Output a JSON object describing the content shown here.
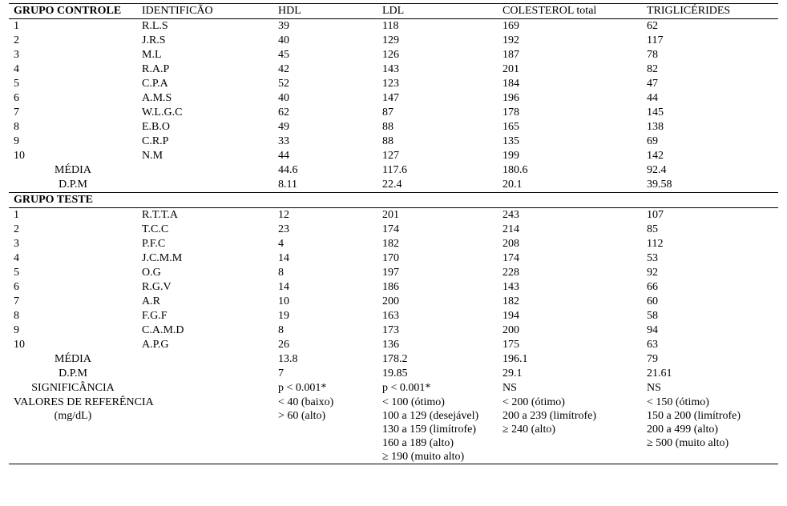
{
  "headers": {
    "grupo_controle": "GRUPO CONTROLE",
    "grupo_teste": "GRUPO TESTE",
    "identificacao": "IDENTIFICÃO",
    "hdl": "HDL",
    "ldl": "LDL",
    "colesterol_total": "COLESTEROL total",
    "triglicerides": "TRIGLICÉRIDES"
  },
  "labels": {
    "media": "MÉDIA",
    "dpm": "D.P.M",
    "significancia": "SIGNIFICÂNCIA",
    "valores_ref1": "VALORES DE REFERÊNCIA",
    "valores_ref2": "(mg/dL)"
  },
  "controle": {
    "rows": [
      {
        "n": "1",
        "id": "R.L.S",
        "hdl": "39",
        "ldl": "118",
        "col": "169",
        "trig": "62"
      },
      {
        "n": "2",
        "id": "J.R.S",
        "hdl": "40",
        "ldl": "129",
        "col": "192",
        "trig": "117"
      },
      {
        "n": "3",
        "id": "M.L",
        "hdl": "45",
        "ldl": "126",
        "col": "187",
        "trig": "78"
      },
      {
        "n": "4",
        "id": "R.A.P",
        "hdl": "42",
        "ldl": "143",
        "col": "201",
        "trig": "82"
      },
      {
        "n": "5",
        "id": "C.P.A",
        "hdl": "52",
        "ldl": "123",
        "col": "184",
        "trig": "47"
      },
      {
        "n": "6",
        "id": "A.M.S",
        "hdl": "40",
        "ldl": "147",
        "col": "196",
        "trig": "44"
      },
      {
        "n": "7",
        "id": "W.L.G.C",
        "hdl": "62",
        "ldl": "87",
        "col": "178",
        "trig": "145"
      },
      {
        "n": "8",
        "id": "E.B.O",
        "hdl": "49",
        "ldl": "88",
        "col": "165",
        "trig": "138"
      },
      {
        "n": "9",
        "id": "C.R.P",
        "hdl": "33",
        "ldl": "88",
        "col": "135",
        "trig": "69"
      },
      {
        "n": "10",
        "id": "N.M",
        "hdl": "44",
        "ldl": "127",
        "col": "199",
        "trig": "142"
      }
    ],
    "media": {
      "hdl": "44.6",
      "ldl": "117.6",
      "col": "180.6",
      "trig": "92.4"
    },
    "dpm": {
      "hdl": "8.11",
      "ldl": "22.4",
      "col": "20.1",
      "trig": "39.58"
    }
  },
  "teste": {
    "rows": [
      {
        "n": "1",
        "id": "R.T.T.A",
        "hdl": "12",
        "ldl": "201",
        "col": "243",
        "trig": "107"
      },
      {
        "n": "2",
        "id": "T.C.C",
        "hdl": "23",
        "ldl": "174",
        "col": "214",
        "trig": "85"
      },
      {
        "n": "3",
        "id": "P.F.C",
        "hdl": "4",
        "ldl": "182",
        "col": "208",
        "trig": "112"
      },
      {
        "n": "4",
        "id": "J.C.M.M",
        "hdl": "14",
        "ldl": "170",
        "col": "174",
        "trig": "53"
      },
      {
        "n": "5",
        "id": "O.G",
        "hdl": "8",
        "ldl": "197",
        "col": "228",
        "trig": "92"
      },
      {
        "n": "6",
        "id": "R.G.V",
        "hdl": "14",
        "ldl": "186",
        "col": "143",
        "trig": "66"
      },
      {
        "n": "7",
        "id": "A.R",
        "hdl": "10",
        "ldl": "200",
        "col": "182",
        "trig": "60"
      },
      {
        "n": "8",
        "id": "F.G.F",
        "hdl": "19",
        "ldl": "163",
        "col": "194",
        "trig": "58"
      },
      {
        "n": "9",
        "id": "C.A.M.D",
        "hdl": "8",
        "ldl": "173",
        "col": "200",
        "trig": "94"
      },
      {
        "n": "10",
        "id": "A.P.G",
        "hdl": "26",
        "ldl": "136",
        "col": "175",
        "trig": "63"
      }
    ],
    "media": {
      "hdl": "13.8",
      "ldl": "178.2",
      "col": "196.1",
      "trig": "79"
    },
    "dpm": {
      "hdl": "7",
      "ldl": "19.85",
      "col": "29.1",
      "trig": "21.61"
    },
    "signif": {
      "hdl": "p < 0.001*",
      "ldl": "p < 0.001*",
      "col": "NS",
      "trig": "NS"
    }
  },
  "ref": {
    "r1": {
      "hdl": "< 40 (baixo)",
      "ldl": "< 100 (ótimo)",
      "col": "< 200 (ótimo)",
      "trig": "< 150 (ótimo)"
    },
    "r2": {
      "hdl": "> 60 (alto)",
      "ldl": "100 a 129 (desejável)",
      "col": "200 a 239 (limítrofe)",
      "trig": "150 a 200 (limítrofe)"
    },
    "r3": {
      "hdl": "",
      "ldl": "130 a 159 (limítrofe)",
      "col": "≥ 240 (alto)",
      "trig": "200 a 499 (alto)"
    },
    "r4": {
      "hdl": "",
      "ldl": "160 a 189 (alto)",
      "col": "",
      "trig": "≥ 500 (muito alto)"
    },
    "r5": {
      "hdl": "",
      "ldl": "≥ 190 (muito alto)",
      "col": "",
      "trig": ""
    }
  }
}
